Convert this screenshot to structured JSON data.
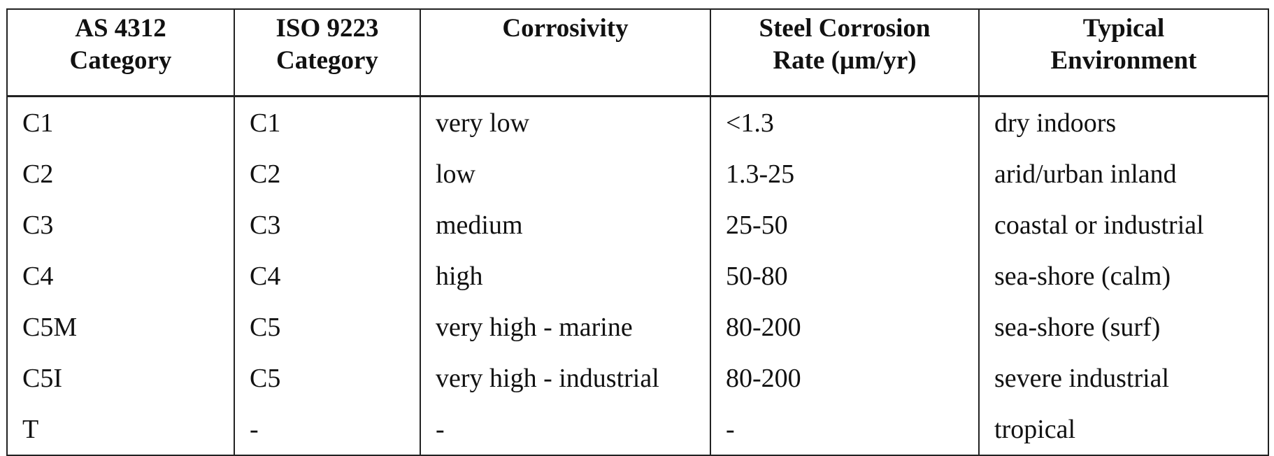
{
  "table": {
    "header": [
      [
        "AS 4312",
        "Category"
      ],
      [
        "ISO 9223",
        "Category"
      ],
      [
        "Corrosivity"
      ],
      [
        "Steel Corrosion",
        "Rate (µm/yr)"
      ],
      [
        "Typical",
        "Environment"
      ]
    ],
    "rows": [
      [
        "C1",
        "C1",
        "very low",
        "<1.3",
        "dry indoors"
      ],
      [
        "C2",
        "C2",
        "low",
        "1.3-25",
        "arid/urban inland"
      ],
      [
        "C3",
        "C3",
        "medium",
        "25-50",
        "coastal or industrial"
      ],
      [
        "C4",
        "C4",
        "high",
        "50-80",
        "sea-shore (calm)"
      ],
      [
        "C5M",
        "C5",
        "very high - marine",
        "80-200",
        "sea-shore (surf)"
      ],
      [
        "C5I",
        "C5",
        "very high - industrial",
        "80-200",
        "severe industrial"
      ],
      [
        "T",
        "-",
        "-",
        "-",
        "tropical"
      ]
    ]
  }
}
